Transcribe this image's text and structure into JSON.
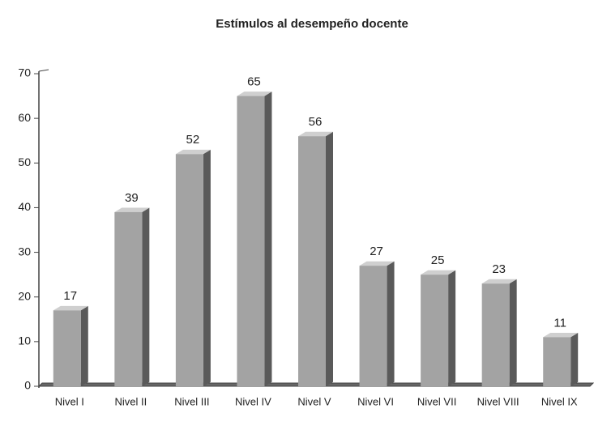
{
  "chart_data": {
    "type": "bar",
    "title": "Estímulos al desempeño docente",
    "categories": [
      "Nivel I",
      "Nivel II",
      "Nivel III",
      "Nivel IV",
      "Nivel V",
      "Nivel VI",
      "Nivel VII",
      "Nivel VIII",
      "Nivel IX"
    ],
    "values": [
      17,
      39,
      52,
      65,
      56,
      27,
      25,
      23,
      11
    ],
    "color": "#a3a3a3",
    "ylim": [
      0,
      70
    ],
    "yticks": [
      0,
      10,
      20,
      30,
      40,
      50,
      60,
      70
    ],
    "grid": false
  }
}
